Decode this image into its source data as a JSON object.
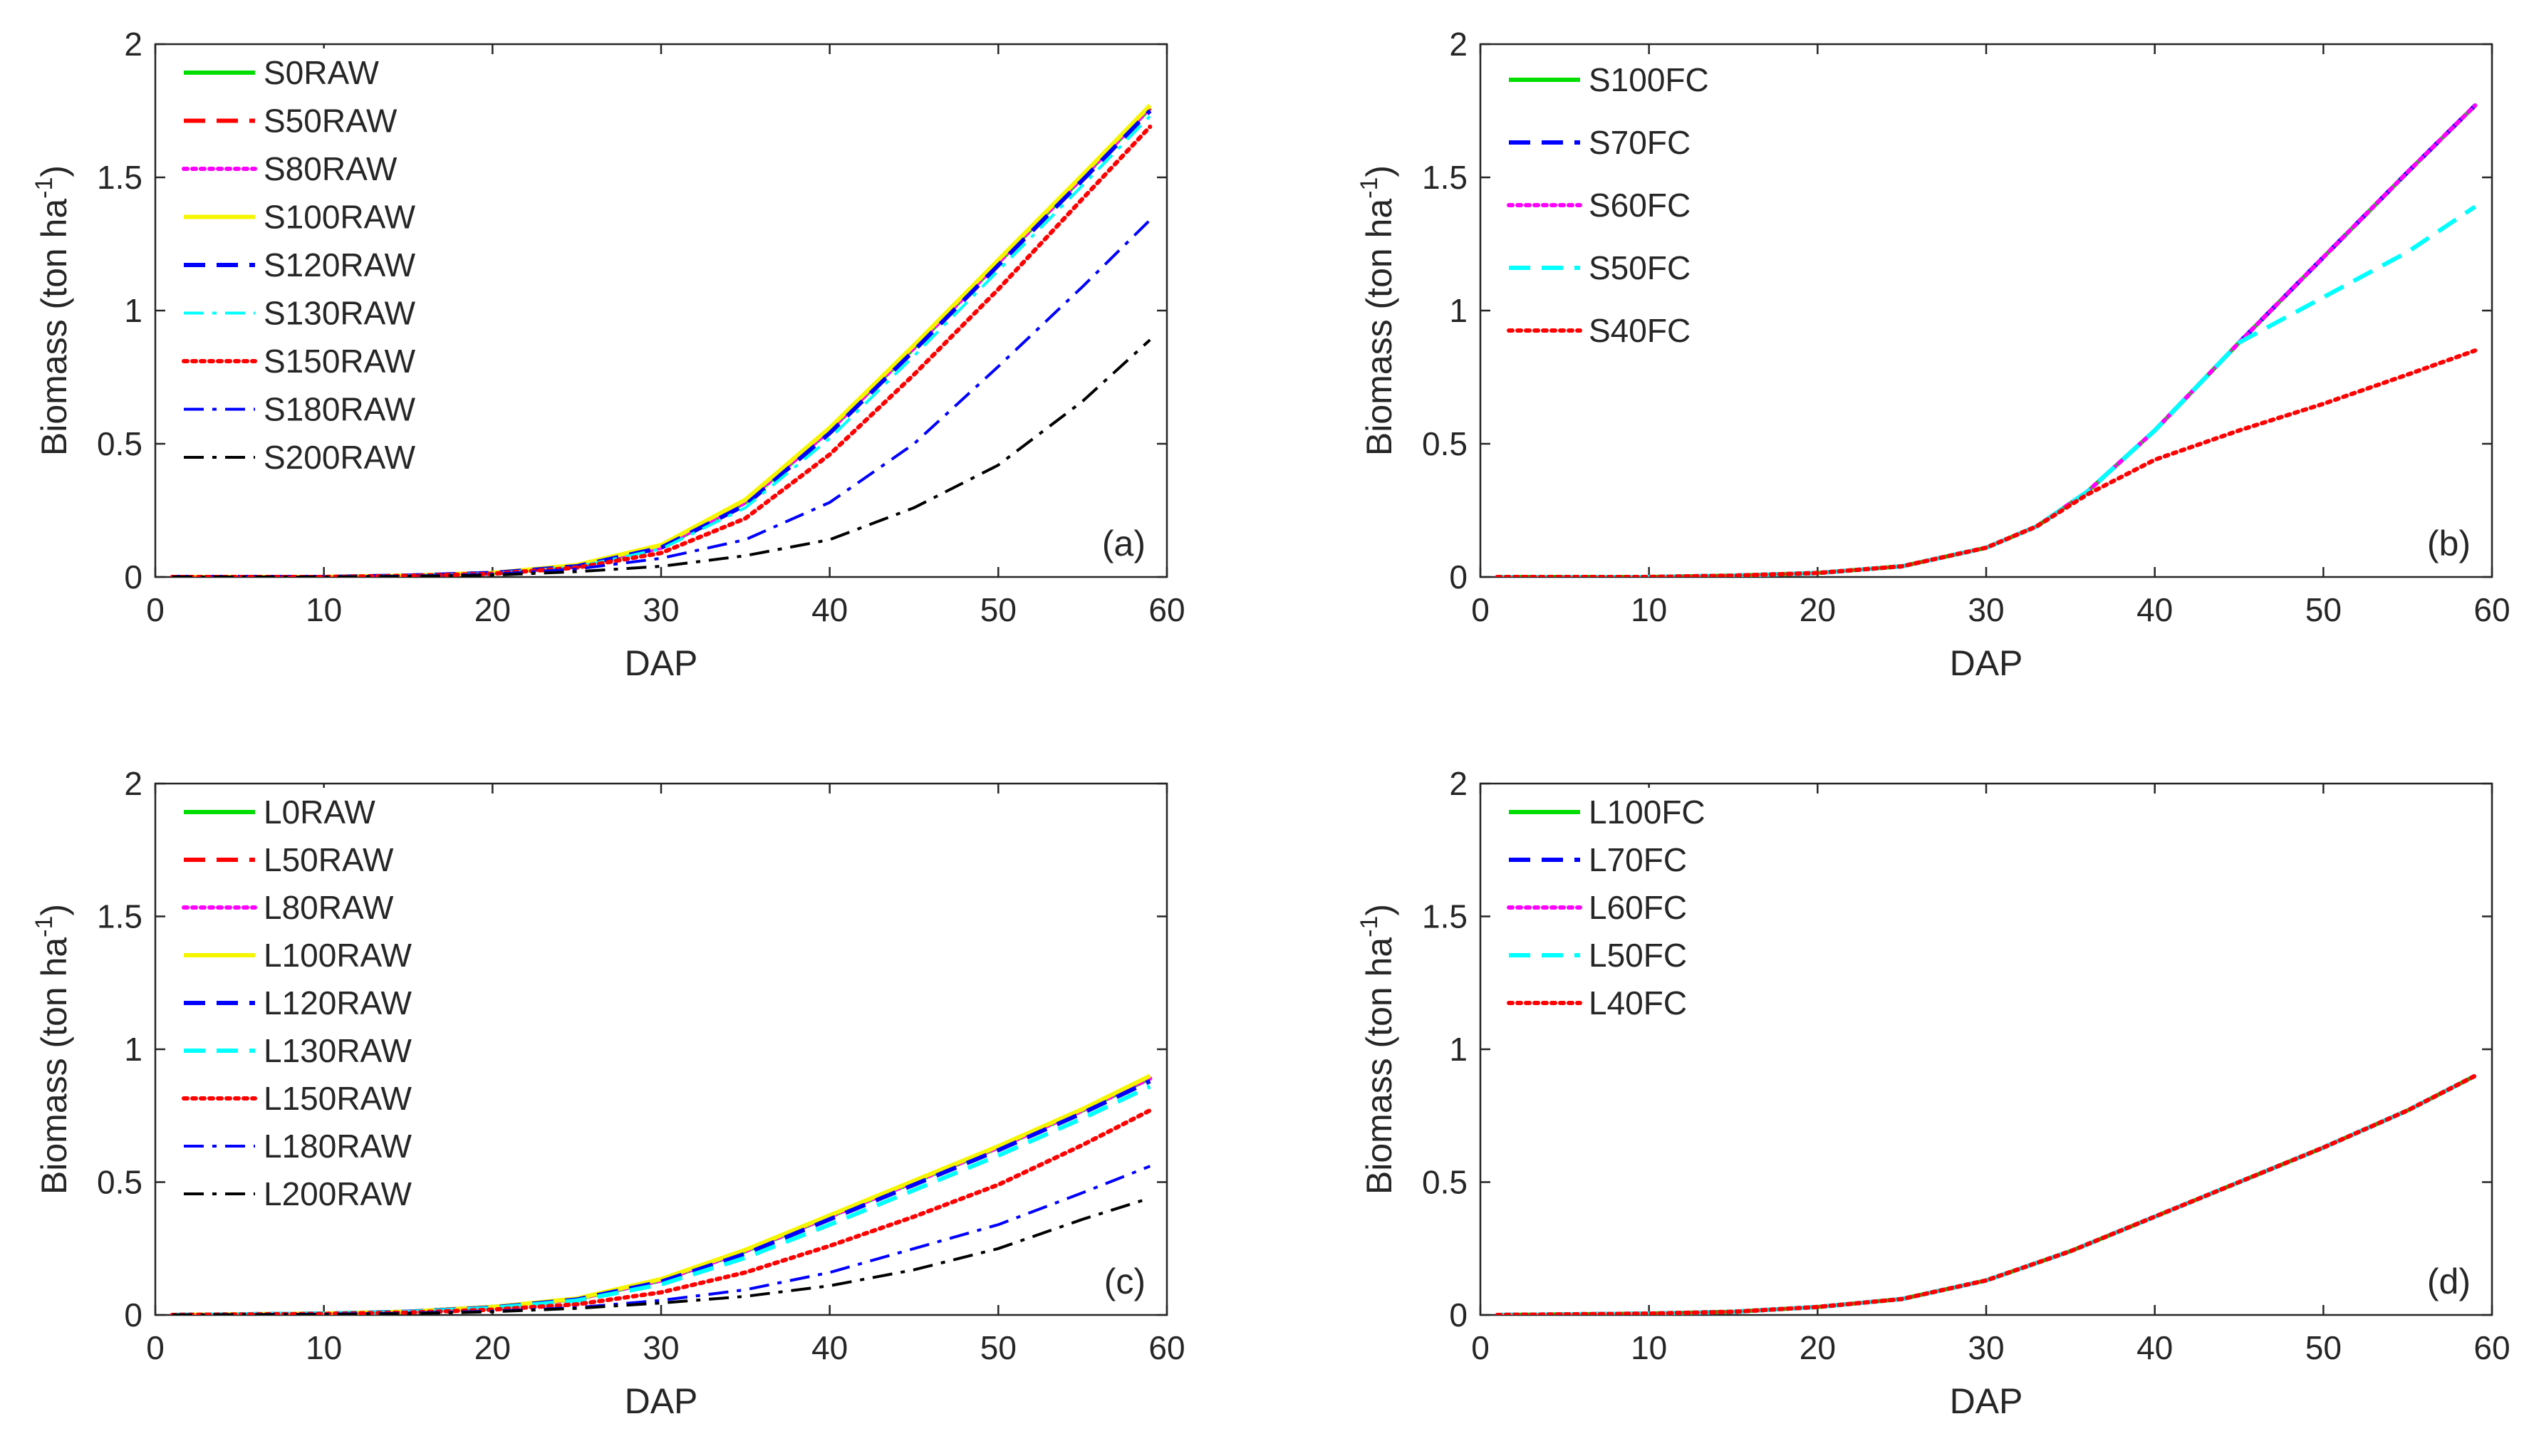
{
  "figure": {
    "xlabel": "DAP",
    "ylabel_main": "Biomass (ton ha",
    "ylabel_sup": "-1",
    "ylabel_close": ")",
    "xticks": [
      0,
      10,
      20,
      30,
      40,
      50,
      60
    ],
    "yticks": [
      0,
      0.5,
      1,
      1.5,
      2
    ],
    "xlim": [
      0,
      60
    ],
    "ylim": [
      0,
      2
    ]
  },
  "chart_data": [
    {
      "type": "line",
      "panel": "(a)",
      "xlabel": "DAP",
      "ylabel": "Biomass (ton ha-1)",
      "xlim": [
        0,
        60
      ],
      "ylim": [
        0,
        2
      ],
      "legend_position": "top-left",
      "x": [
        1,
        10,
        15,
        20,
        25,
        30,
        35,
        40,
        45,
        50,
        55,
        59
      ],
      "series": [
        {
          "name": "S0RAW",
          "color": "#00dd00",
          "dash": "solid",
          "values": [
            0,
            0,
            0.005,
            0.015,
            0.04,
            0.11,
            0.28,
            0.55,
            0.86,
            1.18,
            1.5,
            1.76
          ]
        },
        {
          "name": "S50RAW",
          "color": "#ff0000",
          "dash": "dash",
          "values": [
            0,
            0,
            0.005,
            0.015,
            0.04,
            0.11,
            0.28,
            0.55,
            0.86,
            1.18,
            1.5,
            1.76
          ]
        },
        {
          "name": "S80RAW",
          "color": "#ff00ff",
          "dash": "dot",
          "values": [
            0,
            0,
            0.005,
            0.015,
            0.04,
            0.11,
            0.28,
            0.55,
            0.86,
            1.18,
            1.5,
            1.76
          ]
        },
        {
          "name": "S100RAW",
          "color": "#f5f500",
          "dash": "solid",
          "values": [
            0,
            0,
            0.005,
            0.015,
            0.045,
            0.12,
            0.29,
            0.56,
            0.87,
            1.19,
            1.51,
            1.77
          ]
        },
        {
          "name": "S120RAW",
          "color": "#0000ff",
          "dash": "dash",
          "values": [
            0,
            0,
            0.005,
            0.015,
            0.04,
            0.11,
            0.27,
            0.54,
            0.85,
            1.17,
            1.49,
            1.75
          ]
        },
        {
          "name": "S130RAW",
          "color": "#00ffff",
          "dash": "dashdot",
          "values": [
            0,
            0,
            0.005,
            0.014,
            0.038,
            0.105,
            0.26,
            0.52,
            0.83,
            1.15,
            1.47,
            1.73
          ]
        },
        {
          "name": "S150RAW",
          "color": "#ff0000",
          "dash": "dot",
          "values": [
            0,
            0,
            0.004,
            0.012,
            0.035,
            0.09,
            0.22,
            0.46,
            0.76,
            1.08,
            1.42,
            1.69
          ]
        },
        {
          "name": "S180RAW",
          "color": "#0000ff",
          "dash": "dashdot",
          "values": [
            0,
            0,
            0.003,
            0.01,
            0.03,
            0.07,
            0.14,
            0.28,
            0.5,
            0.79,
            1.09,
            1.34
          ]
        },
        {
          "name": "S200RAW",
          "color": "#000000",
          "dash": "dashdot",
          "values": [
            0,
            0,
            0.002,
            0.007,
            0.02,
            0.04,
            0.08,
            0.14,
            0.26,
            0.42,
            0.66,
            0.89
          ]
        }
      ]
    },
    {
      "type": "line",
      "panel": "(b)",
      "xlabel": "DAP",
      "ylabel": "Biomass (ton ha-1)",
      "xlim": [
        0,
        60
      ],
      "ylim": [
        0,
        2
      ],
      "legend_position": "top-left",
      "x": [
        1,
        10,
        15,
        20,
        25,
        30,
        33,
        36,
        40,
        45,
        50,
        55,
        59
      ],
      "series": [
        {
          "name": "S100FC",
          "color": "#00dd00",
          "dash": "solid",
          "values": [
            0,
            0,
            0.005,
            0.015,
            0.04,
            0.11,
            0.19,
            0.32,
            0.55,
            0.88,
            1.2,
            1.52,
            1.77
          ]
        },
        {
          "name": "S70FC",
          "color": "#0000ff",
          "dash": "dash",
          "values": [
            0,
            0,
            0.005,
            0.015,
            0.04,
            0.11,
            0.19,
            0.32,
            0.55,
            0.88,
            1.2,
            1.52,
            1.77
          ]
        },
        {
          "name": "S60FC",
          "color": "#ff00ff",
          "dash": "dot",
          "values": [
            0,
            0,
            0.005,
            0.015,
            0.04,
            0.11,
            0.19,
            0.32,
            0.55,
            0.88,
            1.2,
            1.52,
            1.77
          ]
        },
        {
          "name": "S50FC",
          "color": "#00ffff",
          "dash": "dash",
          "values": [
            0,
            0,
            0.005,
            0.015,
            0.04,
            0.11,
            0.19,
            0.32,
            0.55,
            0.88,
            1.05,
            1.22,
            1.39
          ]
        },
        {
          "name": "S40FC",
          "color": "#ff0000",
          "dash": "dot",
          "values": [
            0,
            0,
            0.005,
            0.015,
            0.04,
            0.11,
            0.19,
            0.31,
            0.44,
            0.55,
            0.65,
            0.76,
            0.85
          ]
        }
      ]
    },
    {
      "type": "line",
      "panel": "(c)",
      "xlabel": "DAP",
      "ylabel": "Biomass (ton ha-1)",
      "xlim": [
        0,
        60
      ],
      "ylim": [
        0,
        2
      ],
      "legend_position": "top-left",
      "x": [
        1,
        10,
        15,
        20,
        25,
        30,
        35,
        40,
        45,
        50,
        55,
        59
      ],
      "series": [
        {
          "name": "L0RAW",
          "color": "#00dd00",
          "dash": "solid",
          "values": [
            0,
            0.005,
            0.012,
            0.03,
            0.06,
            0.13,
            0.24,
            0.37,
            0.5,
            0.63,
            0.77,
            0.89
          ]
        },
        {
          "name": "L50RAW",
          "color": "#ff0000",
          "dash": "dash",
          "values": [
            0,
            0.005,
            0.012,
            0.03,
            0.06,
            0.13,
            0.24,
            0.37,
            0.5,
            0.63,
            0.77,
            0.89
          ]
        },
        {
          "name": "L80RAW",
          "color": "#ff00ff",
          "dash": "dot",
          "values": [
            0,
            0.005,
            0.012,
            0.03,
            0.06,
            0.13,
            0.24,
            0.37,
            0.5,
            0.63,
            0.77,
            0.89
          ]
        },
        {
          "name": "L100RAW",
          "color": "#f5f500",
          "dash": "solid",
          "values": [
            0,
            0.005,
            0.012,
            0.03,
            0.062,
            0.135,
            0.245,
            0.375,
            0.505,
            0.635,
            0.775,
            0.9
          ]
        },
        {
          "name": "L120RAW",
          "color": "#0000ff",
          "dash": "dash",
          "values": [
            0,
            0.005,
            0.012,
            0.028,
            0.058,
            0.125,
            0.23,
            0.36,
            0.49,
            0.62,
            0.76,
            0.88
          ]
        },
        {
          "name": "L130RAW",
          "color": "#00ffff",
          "dash": "dash",
          "values": [
            0,
            0.005,
            0.011,
            0.026,
            0.054,
            0.115,
            0.215,
            0.34,
            0.47,
            0.6,
            0.74,
            0.86
          ]
        },
        {
          "name": "L150RAW",
          "color": "#ff0000",
          "dash": "dot",
          "values": [
            0,
            0.004,
            0.009,
            0.02,
            0.04,
            0.085,
            0.16,
            0.26,
            0.37,
            0.49,
            0.64,
            0.77
          ]
        },
        {
          "name": "L180RAW",
          "color": "#0000ff",
          "dash": "dashdot",
          "values": [
            0,
            0.003,
            0.007,
            0.014,
            0.028,
            0.055,
            0.095,
            0.16,
            0.25,
            0.34,
            0.46,
            0.56
          ]
        },
        {
          "name": "L200RAW",
          "color": "#000000",
          "dash": "dashdot",
          "values": [
            0,
            0.002,
            0.005,
            0.012,
            0.025,
            0.045,
            0.07,
            0.11,
            0.17,
            0.25,
            0.36,
            0.44
          ]
        }
      ]
    },
    {
      "type": "line",
      "panel": "(d)",
      "xlabel": "DAP",
      "ylabel": "Biomass (ton ha-1)",
      "xlim": [
        0,
        60
      ],
      "ylim": [
        0,
        2
      ],
      "legend_position": "top-left",
      "x": [
        1,
        10,
        15,
        20,
        25,
        30,
        35,
        40,
        45,
        50,
        55,
        59
      ],
      "series": [
        {
          "name": "L100FC",
          "color": "#00dd00",
          "dash": "solid",
          "values": [
            0,
            0.005,
            0.012,
            0.03,
            0.06,
            0.13,
            0.24,
            0.37,
            0.5,
            0.63,
            0.77,
            0.9
          ]
        },
        {
          "name": "L70FC",
          "color": "#0000ff",
          "dash": "dash",
          "values": [
            0,
            0.005,
            0.012,
            0.03,
            0.06,
            0.13,
            0.24,
            0.37,
            0.5,
            0.63,
            0.77,
            0.9
          ]
        },
        {
          "name": "L60FC",
          "color": "#ff00ff",
          "dash": "dot",
          "values": [
            0,
            0.005,
            0.012,
            0.03,
            0.06,
            0.13,
            0.24,
            0.37,
            0.5,
            0.63,
            0.77,
            0.9
          ]
        },
        {
          "name": "L50FC",
          "color": "#00ffff",
          "dash": "dash",
          "values": [
            0,
            0.005,
            0.012,
            0.03,
            0.06,
            0.13,
            0.24,
            0.37,
            0.5,
            0.63,
            0.77,
            0.9
          ]
        },
        {
          "name": "L40FC",
          "color": "#ff0000",
          "dash": "dot",
          "values": [
            0,
            0.005,
            0.012,
            0.03,
            0.06,
            0.13,
            0.24,
            0.37,
            0.5,
            0.63,
            0.77,
            0.9
          ]
        }
      ]
    }
  ]
}
